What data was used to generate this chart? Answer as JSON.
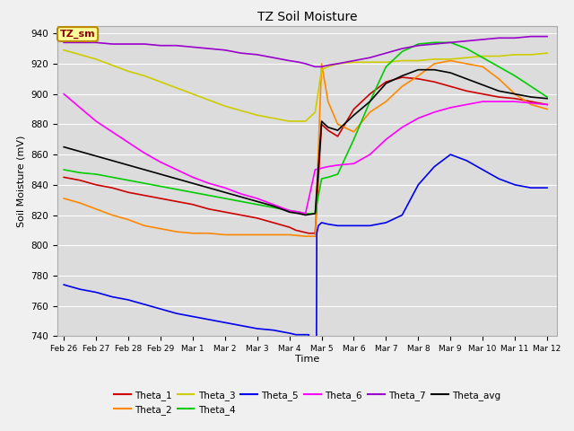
{
  "title": "TZ Soil Moisture",
  "xlabel": "Time",
  "ylabel": "Soil Moisture (mV)",
  "ylim": [
    740,
    945
  ],
  "background_color": "#dcdcdc",
  "legend_label": "TZ_sm",
  "x_tick_labels": [
    "Feb 26",
    "Feb 27",
    "Feb 28",
    "Feb 29",
    "Mar 1",
    "Mar 2",
    "Mar 3",
    "Mar 4",
    "Mar 5",
    "Mar 6",
    "Mar 7",
    "Mar 8",
    "Mar 9",
    "Mar 10",
    "Mar 11",
    "Mar 12"
  ],
  "series": {
    "Theta_1": {
      "color": "#cc0000",
      "points": [
        [
          0,
          845
        ],
        [
          0.5,
          843
        ],
        [
          1,
          840
        ],
        [
          1.5,
          838
        ],
        [
          2,
          835
        ],
        [
          2.5,
          833
        ],
        [
          3,
          831
        ],
        [
          3.5,
          829
        ],
        [
          4,
          827
        ],
        [
          4.5,
          824
        ],
        [
          5,
          822
        ],
        [
          5.5,
          820
        ],
        [
          6,
          818
        ],
        [
          6.5,
          815
        ],
        [
          7,
          812
        ],
        [
          7.2,
          810
        ],
        [
          7.4,
          809
        ],
        [
          7.6,
          808
        ],
        [
          7.8,
          808
        ],
        [
          8.0,
          880
        ],
        [
          8.2,
          876
        ],
        [
          8.5,
          872
        ],
        [
          9,
          890
        ],
        [
          9.5,
          900
        ],
        [
          10,
          908
        ],
        [
          10.5,
          911
        ],
        [
          11,
          910
        ],
        [
          11.5,
          908
        ],
        [
          12,
          905
        ],
        [
          12.5,
          902
        ],
        [
          13,
          900
        ],
        [
          13.5,
          898
        ],
        [
          14,
          897
        ],
        [
          14.5,
          895
        ],
        [
          15,
          893
        ]
      ]
    },
    "Theta_2": {
      "color": "#ff8800",
      "points": [
        [
          0,
          831
        ],
        [
          0.5,
          828
        ],
        [
          1,
          824
        ],
        [
          1.5,
          820
        ],
        [
          2,
          817
        ],
        [
          2.5,
          813
        ],
        [
          3,
          811
        ],
        [
          3.5,
          809
        ],
        [
          4,
          808
        ],
        [
          4.5,
          808
        ],
        [
          5,
          807
        ],
        [
          5.5,
          807
        ],
        [
          6,
          807
        ],
        [
          6.5,
          807
        ],
        [
          7,
          807
        ],
        [
          7.5,
          806
        ],
        [
          7.8,
          806
        ],
        [
          8.0,
          920
        ],
        [
          8.2,
          895
        ],
        [
          8.5,
          880
        ],
        [
          9,
          875
        ],
        [
          9.5,
          888
        ],
        [
          10,
          895
        ],
        [
          10.5,
          905
        ],
        [
          11,
          912
        ],
        [
          11.5,
          920
        ],
        [
          12,
          922
        ],
        [
          12.5,
          920
        ],
        [
          13,
          918
        ],
        [
          13.5,
          910
        ],
        [
          14,
          900
        ],
        [
          14.5,
          893
        ],
        [
          15,
          890
        ]
      ]
    },
    "Theta_3": {
      "color": "#cccc00",
      "points": [
        [
          0,
          929
        ],
        [
          0.5,
          926
        ],
        [
          1,
          923
        ],
        [
          1.5,
          919
        ],
        [
          2,
          915
        ],
        [
          2.5,
          912
        ],
        [
          3,
          908
        ],
        [
          3.5,
          904
        ],
        [
          4,
          900
        ],
        [
          4.5,
          896
        ],
        [
          5,
          892
        ],
        [
          5.5,
          889
        ],
        [
          6,
          886
        ],
        [
          6.5,
          884
        ],
        [
          7,
          882
        ],
        [
          7.3,
          882
        ],
        [
          7.5,
          882
        ],
        [
          7.8,
          888
        ],
        [
          8.0,
          916
        ],
        [
          8.2,
          918
        ],
        [
          8.5,
          920
        ],
        [
          9,
          921
        ],
        [
          9.5,
          921
        ],
        [
          10,
          921
        ],
        [
          10.5,
          922
        ],
        [
          11,
          922
        ],
        [
          11.5,
          923
        ],
        [
          12,
          923
        ],
        [
          12.5,
          924
        ],
        [
          13,
          925
        ],
        [
          13.5,
          925
        ],
        [
          14,
          926
        ],
        [
          14.5,
          926
        ],
        [
          15,
          927
        ]
      ]
    },
    "Theta_4": {
      "color": "#00cc00",
      "points": [
        [
          0,
          850
        ],
        [
          0.5,
          848
        ],
        [
          1,
          847
        ],
        [
          1.5,
          845
        ],
        [
          2,
          843
        ],
        [
          2.5,
          841
        ],
        [
          3,
          839
        ],
        [
          3.5,
          837
        ],
        [
          4,
          835
        ],
        [
          4.5,
          833
        ],
        [
          5,
          831
        ],
        [
          5.5,
          829
        ],
        [
          6,
          827
        ],
        [
          6.5,
          825
        ],
        [
          7,
          823
        ],
        [
          7.3,
          822
        ],
        [
          7.5,
          821
        ],
        [
          7.8,
          821
        ],
        [
          8.0,
          844
        ],
        [
          8.2,
          845
        ],
        [
          8.5,
          847
        ],
        [
          9,
          870
        ],
        [
          9.5,
          895
        ],
        [
          10,
          918
        ],
        [
          10.5,
          928
        ],
        [
          11,
          933
        ],
        [
          11.5,
          934
        ],
        [
          12,
          934
        ],
        [
          12.5,
          930
        ],
        [
          13,
          924
        ],
        [
          13.5,
          918
        ],
        [
          14,
          912
        ],
        [
          14.5,
          905
        ],
        [
          15,
          898
        ]
      ]
    },
    "Theta_5": {
      "color": "#0000ee",
      "points": [
        [
          0,
          774
        ],
        [
          0.5,
          771
        ],
        [
          1,
          769
        ],
        [
          1.5,
          766
        ],
        [
          2,
          764
        ],
        [
          2.5,
          761
        ],
        [
          3,
          758
        ],
        [
          3.5,
          755
        ],
        [
          4,
          753
        ],
        [
          4.5,
          751
        ],
        [
          5,
          749
        ],
        [
          5.5,
          747
        ],
        [
          6,
          745
        ],
        [
          6.5,
          744
        ],
        [
          7,
          742
        ],
        [
          7.2,
          741
        ],
        [
          7.4,
          741
        ],
        [
          7.5,
          741
        ],
        [
          7.6,
          741
        ],
        [
          7.65,
          630
        ],
        [
          7.7,
          400
        ],
        [
          7.75,
          350
        ],
        [
          7.8,
          400
        ],
        [
          7.85,
          808
        ],
        [
          7.9,
          813
        ],
        [
          8.0,
          815
        ],
        [
          8.2,
          814
        ],
        [
          8.5,
          813
        ],
        [
          9,
          813
        ],
        [
          9.5,
          813
        ],
        [
          10,
          815
        ],
        [
          10.5,
          820
        ],
        [
          11,
          840
        ],
        [
          11.5,
          852
        ],
        [
          12,
          860
        ],
        [
          12.5,
          856
        ],
        [
          13,
          850
        ],
        [
          13.5,
          844
        ],
        [
          14,
          840
        ],
        [
          14.5,
          838
        ],
        [
          15,
          838
        ]
      ]
    },
    "Theta_6": {
      "color": "#ff00ff",
      "points": [
        [
          0,
          900
        ],
        [
          0.5,
          891
        ],
        [
          1,
          882
        ],
        [
          1.5,
          875
        ],
        [
          2,
          868
        ],
        [
          2.5,
          861
        ],
        [
          3,
          855
        ],
        [
          3.5,
          850
        ],
        [
          4,
          845
        ],
        [
          4.5,
          841
        ],
        [
          5,
          838
        ],
        [
          5.5,
          834
        ],
        [
          6,
          831
        ],
        [
          6.5,
          827
        ],
        [
          7,
          823
        ],
        [
          7.3,
          822
        ],
        [
          7.5,
          821
        ],
        [
          7.8,
          850
        ],
        [
          8.0,
          851
        ],
        [
          8.2,
          852
        ],
        [
          8.5,
          853
        ],
        [
          9,
          854
        ],
        [
          9.5,
          860
        ],
        [
          10,
          870
        ],
        [
          10.5,
          878
        ],
        [
          11,
          884
        ],
        [
          11.5,
          888
        ],
        [
          12,
          891
        ],
        [
          12.5,
          893
        ],
        [
          13,
          895
        ],
        [
          13.5,
          895
        ],
        [
          14,
          895
        ],
        [
          14.5,
          894
        ],
        [
          15,
          893
        ]
      ]
    },
    "Theta_7": {
      "color": "#9900cc",
      "points": [
        [
          0,
          934
        ],
        [
          0.5,
          934
        ],
        [
          1,
          934
        ],
        [
          1.5,
          933
        ],
        [
          2,
          933
        ],
        [
          2.5,
          933
        ],
        [
          3,
          932
        ],
        [
          3.5,
          932
        ],
        [
          4,
          931
        ],
        [
          4.5,
          930
        ],
        [
          5,
          929
        ],
        [
          5.5,
          927
        ],
        [
          6,
          926
        ],
        [
          6.5,
          924
        ],
        [
          7,
          922
        ],
        [
          7.3,
          921
        ],
        [
          7.5,
          920
        ],
        [
          7.8,
          918
        ],
        [
          8.0,
          918
        ],
        [
          8.2,
          919
        ],
        [
          8.5,
          920
        ],
        [
          9,
          922
        ],
        [
          9.5,
          924
        ],
        [
          10,
          927
        ],
        [
          10.5,
          930
        ],
        [
          11,
          932
        ],
        [
          11.5,
          933
        ],
        [
          12,
          934
        ],
        [
          12.5,
          935
        ],
        [
          13,
          936
        ],
        [
          13.5,
          937
        ],
        [
          14,
          937
        ],
        [
          14.5,
          938
        ],
        [
          15,
          938
        ]
      ]
    },
    "Theta_avg": {
      "color": "#000000",
      "points": [
        [
          0,
          865
        ],
        [
          0.5,
          862
        ],
        [
          1,
          859
        ],
        [
          1.5,
          856
        ],
        [
          2,
          853
        ],
        [
          2.5,
          850
        ],
        [
          3,
          847
        ],
        [
          3.5,
          844
        ],
        [
          4,
          841
        ],
        [
          4.5,
          838
        ],
        [
          5,
          835
        ],
        [
          5.5,
          832
        ],
        [
          6,
          829
        ],
        [
          6.5,
          826
        ],
        [
          7,
          822
        ],
        [
          7.3,
          821
        ],
        [
          7.5,
          820
        ],
        [
          7.8,
          821
        ],
        [
          8.0,
          882
        ],
        [
          8.2,
          878
        ],
        [
          8.5,
          876
        ],
        [
          9,
          886
        ],
        [
          9.5,
          895
        ],
        [
          10,
          907
        ],
        [
          10.5,
          912
        ],
        [
          11,
          916
        ],
        [
          11.5,
          916
        ],
        [
          12,
          914
        ],
        [
          12.5,
          910
        ],
        [
          13,
          906
        ],
        [
          13.5,
          902
        ],
        [
          14,
          900
        ],
        [
          14.5,
          898
        ],
        [
          15,
          897
        ]
      ]
    }
  }
}
